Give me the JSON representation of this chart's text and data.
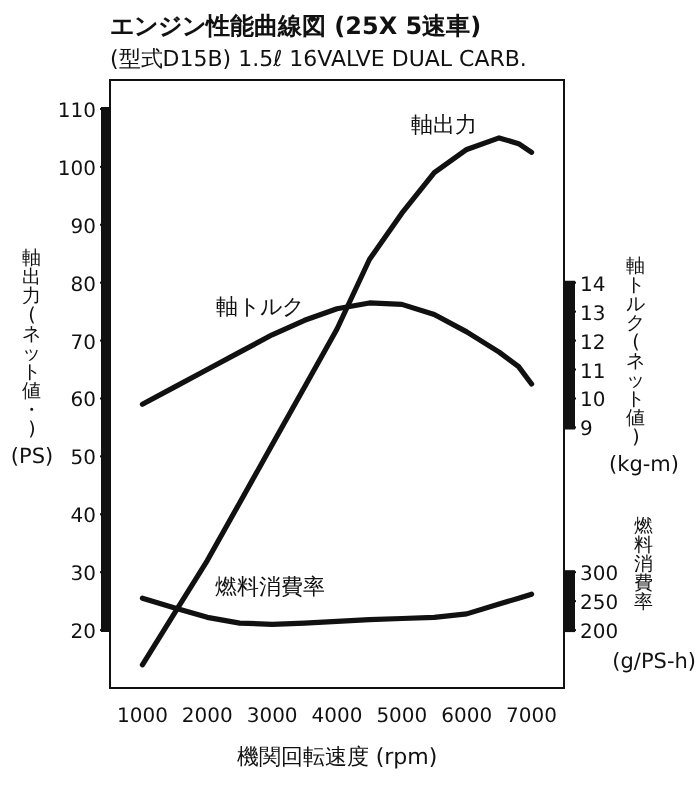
{
  "chart_data": {
    "type": "line",
    "title": "エンジン性能曲線図 (25X 5速車)",
    "subtitle": "(型式D15B) 1.5ℓ 16VALVE DUAL CARB.",
    "xlabel": "機関回転速度 (rpm)",
    "ylabel": "軸出力(ネット値・)\n(PS)",
    "y2label": "軸トルク(ネット値)\n(kg-m)",
    "y3label": "燃料消費率\n(g/PS-h)",
    "x": [
      1000,
      1500,
      2000,
      2500,
      3000,
      3500,
      4000,
      4500,
      5000,
      5500,
      6000,
      6500,
      6800,
      7000
    ],
    "xlim": [
      500,
      7500
    ],
    "xticks": [
      1000,
      2000,
      3000,
      4000,
      5000,
      6000,
      7000
    ],
    "ylim": [
      10,
      115
    ],
    "yticks": [
      20,
      30,
      40,
      50,
      60,
      70,
      80,
      90,
      100,
      110
    ],
    "y2lim": [
      0,
      21
    ],
    "y2ticks": [
      9,
      10,
      11,
      12,
      13,
      14
    ],
    "y3lim": [
      100,
      1150
    ],
    "y3ticks": [
      200,
      250,
      300
    ],
    "grid": false,
    "marker": "none",
    "line_style": "solid",
    "series": [
      {
        "name": "軸出力",
        "color": "#111111",
        "values": [
          14,
          23,
          32,
          42,
          52,
          62,
          72,
          84,
          92,
          99,
          103,
          105,
          104,
          102.5
        ]
      },
      {
        "name": "軸トルク",
        "color": "#111111",
        "axis": "y2",
        "values": [
          9.8,
          10.4,
          11.0,
          11.6,
          12.2,
          12.7,
          13.1,
          13.3,
          13.25,
          12.9,
          12.3,
          11.6,
          11.1,
          10.5
        ]
      },
      {
        "name": "燃料消費率",
        "color": "#111111",
        "axis": "y3",
        "values": [
          255,
          238,
          222,
          212,
          210,
          212,
          215,
          218,
          220,
          222,
          228,
          245,
          255,
          262
        ]
      }
    ]
  }
}
